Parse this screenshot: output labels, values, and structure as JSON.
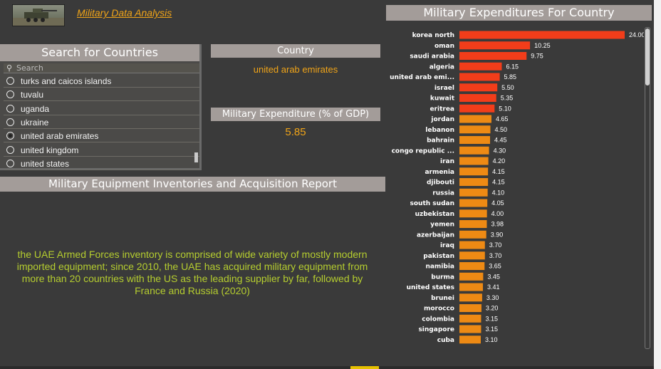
{
  "app": {
    "title": "Military Data Analysis"
  },
  "search": {
    "header": "Search for Countries",
    "placeholder": "Search",
    "items": [
      {
        "label": "turks and caicos islands",
        "selected": false
      },
      {
        "label": "tuvalu",
        "selected": false
      },
      {
        "label": "uganda",
        "selected": false
      },
      {
        "label": "ukraine",
        "selected": false
      },
      {
        "label": "united arab emirates",
        "selected": true
      },
      {
        "label": "united kingdom",
        "selected": false
      },
      {
        "label": "united states",
        "selected": false
      }
    ]
  },
  "country_card": {
    "header": "Country",
    "value": "united arab emirates"
  },
  "expenditure_card": {
    "header": "Military Expenditure (% of GDP)",
    "value": "5.85"
  },
  "report": {
    "header": "Military Equipment Inventories and Acquisition Report",
    "text": "the UAE Armed Forces inventory is comprised of wide variety of mostly modern imported equipment; since 2010, the UAE has acquired military equipment from more than 20 countries with the US as the leading supplier by far, followed by France and Russia (2020)"
  },
  "chart_data": {
    "type": "bar",
    "orientation": "horizontal",
    "title": "Military Expenditures For Country",
    "categories": [
      "korea north",
      "oman",
      "saudi arabia",
      "algeria",
      "united arab emi...",
      "israel",
      "kuwait",
      "eritrea",
      "jordan",
      "lebanon",
      "bahrain",
      "congo republic ...",
      "iran",
      "armenia",
      "djibouti",
      "russia",
      "south sudan",
      "uzbekistan",
      "yemen",
      "azerbaijan",
      "iraq",
      "pakistan",
      "namibia",
      "burma",
      "united states",
      "brunei",
      "morocco",
      "colombia",
      "singapore",
      "cuba"
    ],
    "values": [
      24.0,
      10.25,
      9.75,
      6.15,
      5.85,
      5.5,
      5.35,
      5.1,
      4.65,
      4.5,
      4.45,
      4.3,
      4.2,
      4.15,
      4.15,
      4.1,
      4.05,
      4.0,
      3.98,
      3.9,
      3.7,
      3.7,
      3.65,
      3.45,
      3.41,
      3.3,
      3.2,
      3.15,
      3.15,
      3.1
    ],
    "labels": [
      "24.00",
      "10.25",
      "9.75",
      "6.15",
      "5.85",
      "5.50",
      "5.35",
      "5.10",
      "4.65",
      "4.50",
      "4.45",
      "4.30",
      "4.20",
      "4.15",
      "4.15",
      "4.10",
      "4.05",
      "4.00",
      "3.98",
      "3.90",
      "3.70",
      "3.70",
      "3.65",
      "3.45",
      "3.41",
      "3.30",
      "3.20",
      "3.15",
      "3.15",
      "3.10"
    ],
    "colors": {
      "high": "#f23d1a",
      "low": "#ee8a14"
    },
    "high_threshold": 5.0,
    "grid": false
  }
}
